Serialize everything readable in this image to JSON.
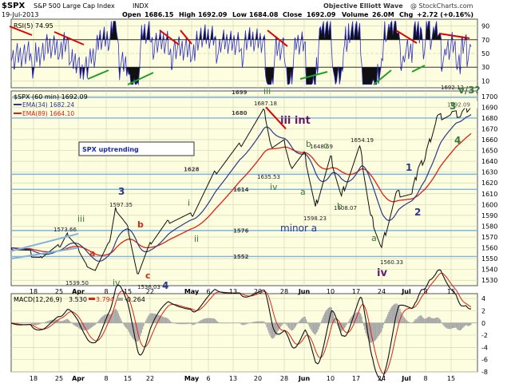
{
  "header": {
    "symbol": "$SPX",
    "name": "S&P 500 Large Cap Index",
    "exchange": "INDX",
    "date": "19-Jul-2013",
    "open_label": "Open",
    "open": "1686.15",
    "high_label": "High",
    "high": "1692.09",
    "low_label": "Low",
    "low": "1684.08",
    "close_label": "Close",
    "close": "1692.09",
    "volume_label": "Volume",
    "volume": "26.0M",
    "chg_label": "Chg",
    "chg": "+2.72 (+0.16%)",
    "credit_left": "Objective Elliott Wave",
    "credit_right": "@ StockCharts.com"
  },
  "colors": {
    "panel_bg": "#fdfde0",
    "grid": "#d6d6b8",
    "price": "#101010",
    "ema34": "#2a3a8a",
    "ema89": "#e02010",
    "rsi": "#3030c8",
    "macd": "#101010",
    "signal": "#e02010",
    "hist": "#a8a8a8",
    "fib": "#7fb4e0",
    "wave_green": "#3a7a3a",
    "wave_navy": "#2a3a8a",
    "wave_purple": "#6a1a6a",
    "wave_red": "#d02a10",
    "trendline_red": "#e00000",
    "trendline_green": "#20a020"
  },
  "rsi_panel": {
    "label": "RSI(5) 74.95",
    "ticks": [
      "90",
      "70",
      "50",
      "30",
      "10"
    ]
  },
  "price_panel": {
    "title": "$SPX (60 min) 1692.09",
    "ema34_label": "EMA(34) 1682.24",
    "ema89_label": "EMA(89) 1664.10",
    "ticks": [
      "1700",
      "1690",
      "1680",
      "1670",
      "1660",
      "1650",
      "1640",
      "1630",
      "1620",
      "1610",
      "1600",
      "1590",
      "1580",
      "1570",
      "1560",
      "1550",
      "1540",
      "1530"
    ],
    "badge": "SPX uptrending",
    "last_price_tag": "1692.09",
    "levels": [
      "1699",
      "1680",
      "1628",
      "1614",
      "1576",
      "1552"
    ],
    "price_labels": [
      "1573.66",
      "1539.50",
      "1597.35",
      "1536.03",
      "1687.18",
      "1635.53",
      "1648.69",
      "1598.23",
      "1608.07",
      "1654.19",
      "1560.33",
      "1692.12"
    ],
    "waves": [
      "iii",
      "iv",
      "3",
      "a",
      "b",
      "c",
      "4",
      "i",
      "ii",
      "iii",
      "iii int",
      "iv",
      "b",
      "a",
      "c",
      "minor a",
      "b",
      "a",
      "iv",
      "1",
      "2",
      "3",
      "4",
      "v/3?"
    ]
  },
  "macd_panel": {
    "label_prefix": "MACD(12,26,9)",
    "macd_value": "3.530",
    "signal_value": "3.794",
    "hist_value": "-0.264",
    "ticks": [
      "4",
      "2",
      "0",
      "-2",
      "-4",
      "-6",
      "-8"
    ]
  },
  "x_axis": {
    "labels": [
      "18",
      "25",
      "Apr",
      "8",
      "15",
      "22",
      "May",
      "6",
      "13",
      "20",
      "28",
      "Jun",
      "10",
      "17",
      "24",
      "Jul",
      "8",
      "15"
    ]
  },
  "chart_data": {
    "type": "line",
    "title": "$SPX (60 min) 1692.09",
    "y_range": [
      1525,
      1705
    ],
    "series": [
      {
        "name": "$SPX (60 min)",
        "points": [
          {
            "x": "Mar 15",
            "y": 1560
          },
          {
            "x": "Mar 20",
            "y": 1552
          },
          {
            "x": "Mar 25",
            "y": 1561
          },
          {
            "x": "Mar 28",
            "y": 1573.66
          },
          {
            "x": "Apr 1",
            "y": 1560
          },
          {
            "x": "Apr 3",
            "y": 1545
          },
          {
            "x": "Apr 5",
            "y": 1539.5
          },
          {
            "x": "Apr 9",
            "y": 1565
          },
          {
            "x": "Apr 11",
            "y": 1597.35
          },
          {
            "x": "Apr 15",
            "y": 1580
          },
          {
            "x": "Apr 18",
            "y": 1536.03
          },
          {
            "x": "Apr 22",
            "y": 1565
          },
          {
            "x": "Apr 26",
            "y": 1585
          },
          {
            "x": "May 1",
            "y": 1590
          },
          {
            "x": "May 8",
            "y": 1630
          },
          {
            "x": "May 15",
            "y": 1655
          },
          {
            "x": "May 22",
            "y": 1687.18
          },
          {
            "x": "May 24",
            "y": 1655
          },
          {
            "x": "May 28",
            "y": 1660
          },
          {
            "x": "May 30",
            "y": 1635.53
          },
          {
            "x": "Jun 3",
            "y": 1648.69
          },
          {
            "x": "Jun 6",
            "y": 1598.23
          },
          {
            "x": "Jun 10",
            "y": 1645
          },
          {
            "x": "Jun 13",
            "y": 1608.07
          },
          {
            "x": "Jun 18",
            "y": 1654.19
          },
          {
            "x": "Jun 21",
            "y": 1590
          },
          {
            "x": "Jun 24",
            "y": 1560.33
          },
          {
            "x": "Jun 28",
            "y": 1610
          },
          {
            "x": "Jul 3",
            "y": 1610
          },
          {
            "x": "Jul 5",
            "y": 1630
          },
          {
            "x": "Jul 8",
            "y": 1645
          },
          {
            "x": "Jul 11",
            "y": 1680
          },
          {
            "x": "Jul 15",
            "y": 1684
          },
          {
            "x": "Jul 17",
            "y": 1683
          },
          {
            "x": "Jul 19",
            "y": 1692.12
          }
        ]
      }
    ]
  }
}
